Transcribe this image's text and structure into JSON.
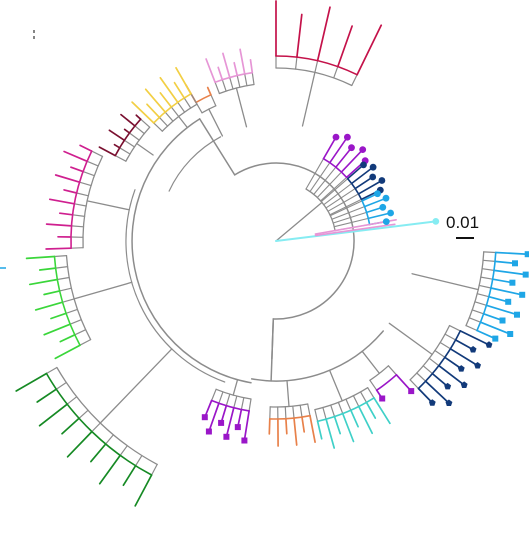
{
  "scale_bar": {
    "label": "0.01"
  },
  "colors": {
    "backbone": "#8c8c8c",
    "crimson": "#c4124a",
    "pink": "#e696d6",
    "orange": "#e8814a",
    "yellow": "#f2cf44",
    "maroon": "#7a1030",
    "magenta": "#cf1f8f",
    "green_light": "#3ad63a",
    "green_dark": "#168a24",
    "purple": "#9a16c8",
    "turquoise": "#3fd0c8",
    "navy": "#123a7a",
    "sky": "#1ea6e6",
    "cyan": "#86ecf2"
  },
  "clades": [
    {
      "name": "crimson-clade",
      "color_key": "crimson",
      "tip_marker": "none"
    },
    {
      "name": "pink-clade",
      "color_key": "pink",
      "tip_marker": "none"
    },
    {
      "name": "orange-clade",
      "color_key": "orange",
      "tip_marker": "none"
    },
    {
      "name": "yellow-clade",
      "color_key": "yellow",
      "tip_marker": "none"
    },
    {
      "name": "maroon-clade",
      "color_key": "maroon",
      "tip_marker": "none"
    },
    {
      "name": "magenta-clade",
      "color_key": "magenta",
      "tip_marker": "none"
    },
    {
      "name": "light-green-clade",
      "color_key": "green_light",
      "tip_marker": "none"
    },
    {
      "name": "dark-green-clade",
      "color_key": "green_dark",
      "tip_marker": "none"
    },
    {
      "name": "purple-square-clade",
      "color_key": "purple",
      "tip_marker": "square"
    },
    {
      "name": "turquoise-clade",
      "color_key": "turquoise",
      "tip_marker": "none"
    },
    {
      "name": "navy-pentagon-clade",
      "color_key": "navy",
      "tip_marker": "pentagon"
    },
    {
      "name": "sky-square-clade",
      "color_key": "sky",
      "tip_marker": "square"
    },
    {
      "name": "purple-dot-clade",
      "color_key": "purple",
      "tip_marker": "circle"
    },
    {
      "name": "navy-dot-clade",
      "color_key": "navy",
      "tip_marker": "circle"
    },
    {
      "name": "sky-dot-clade",
      "color_key": "sky",
      "tip_marker": "circle"
    },
    {
      "name": "cyan-long-branch",
      "color_key": "cyan",
      "tip_marker": "circle"
    }
  ]
}
